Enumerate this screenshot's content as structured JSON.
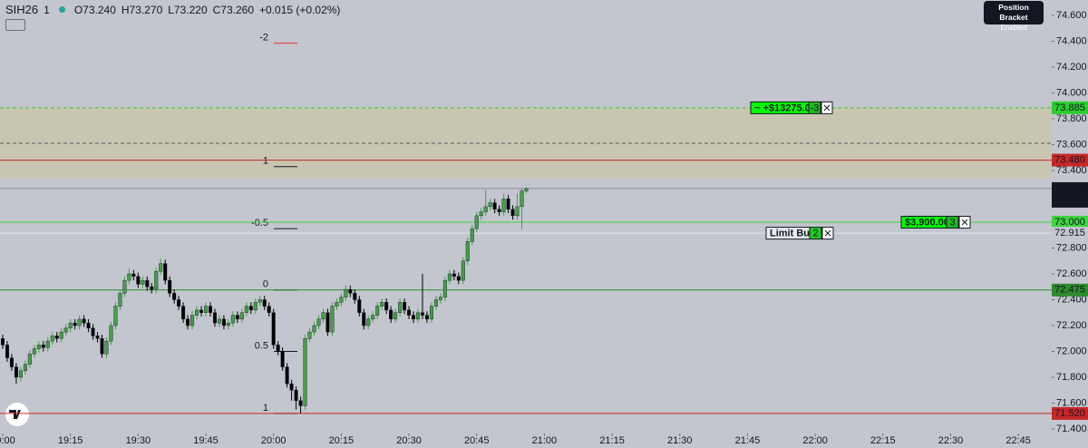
{
  "header": {
    "symbol": "SIH26",
    "interval": "1",
    "open": "O73.240",
    "high": "H73.270",
    "low": "L73.220",
    "close": "C73.260",
    "change": "+0.015 (+0.02%)"
  },
  "tooltip": {
    "title": "Position Bracket",
    "status": "Enabled"
  },
  "chart_data": {
    "type": "candlestick",
    "open": [
      72.1,
      72.05,
      71.95,
      71.88,
      71.8,
      71.85,
      71.9,
      71.98,
      72.02,
      72.05,
      72.03,
      72.08,
      72.12,
      72.1,
      72.15,
      72.18,
      72.22,
      72.2,
      72.25,
      72.22,
      72.18,
      72.12,
      72.1,
      71.98,
      72.08,
      72.2,
      72.35,
      72.45,
      72.55,
      72.6,
      72.58,
      72.52,
      72.55,
      72.5,
      72.48,
      72.62,
      72.68,
      72.55,
      72.45,
      72.4,
      72.35,
      72.25,
      72.2,
      72.28,
      72.32,
      72.3,
      72.35,
      72.3,
      72.22,
      72.25,
      72.2,
      72.22,
      72.28,
      72.25,
      72.3,
      72.35,
      72.32,
      72.38,
      72.4,
      72.35,
      72.3,
      72.05,
      72.0,
      71.88,
      71.75,
      71.7,
      71.62,
      71.58,
      72.1,
      72.15,
      72.2,
      72.25,
      72.3,
      72.15,
      72.35,
      72.38,
      72.42,
      72.48,
      72.45,
      72.4,
      72.3,
      72.2,
      72.25,
      72.28,
      72.35,
      72.38,
      72.32,
      72.25,
      72.3,
      72.38,
      72.32,
      72.28,
      72.25,
      72.3,
      72.28,
      72.25,
      72.35,
      72.4,
      72.42,
      72.55,
      72.6,
      72.58,
      72.55,
      72.7,
      72.85,
      72.95,
      73.05,
      73.08,
      73.12,
      73.15,
      73.1,
      73.08,
      73.18,
      73.1,
      73.05,
      73.12,
      73.24
    ],
    "high": [
      72.13,
      72.08,
      71.98,
      71.91,
      71.88,
      71.93,
      72.01,
      72.05,
      72.08,
      72.08,
      72.11,
      72.15,
      72.15,
      72.18,
      72.21,
      72.25,
      72.25,
      72.28,
      72.28,
      72.25,
      72.21,
      72.15,
      72.13,
      72.11,
      72.23,
      72.38,
      72.48,
      72.58,
      72.64,
      72.63,
      72.61,
      72.58,
      72.58,
      72.53,
      72.65,
      72.72,
      72.71,
      72.58,
      72.48,
      72.43,
      72.38,
      72.28,
      72.31,
      72.35,
      72.35,
      72.38,
      72.38,
      72.33,
      72.28,
      72.28,
      72.25,
      72.31,
      72.31,
      72.33,
      72.38,
      72.38,
      72.41,
      72.43,
      72.43,
      72.38,
      72.33,
      72.08,
      72.03,
      71.91,
      71.78,
      71.73,
      71.65,
      72.13,
      72.18,
      72.23,
      72.28,
      72.33,
      72.33,
      72.38,
      72.41,
      72.45,
      72.51,
      72.51,
      72.48,
      72.43,
      72.33,
      72.28,
      72.31,
      72.38,
      72.41,
      72.41,
      72.35,
      72.33,
      72.41,
      72.41,
      72.35,
      72.31,
      72.33,
      72.6,
      72.31,
      72.38,
      72.43,
      72.45,
      72.58,
      72.63,
      72.63,
      72.61,
      72.73,
      72.88,
      72.98,
      73.08,
      73.11,
      73.25,
      73.18,
      73.18,
      73.13,
      73.22,
      73.21,
      73.13,
      73.22,
      73.26,
      73.27
    ],
    "low": [
      72.02,
      71.92,
      71.85,
      71.75,
      71.77,
      71.82,
      71.87,
      71.95,
      71.99,
      72.0,
      72.0,
      72.05,
      72.07,
      72.07,
      72.12,
      72.15,
      72.17,
      72.17,
      72.19,
      72.15,
      72.09,
      72.07,
      71.95,
      71.95,
      72.05,
      72.17,
      72.32,
      72.42,
      72.52,
      72.55,
      72.49,
      72.49,
      72.47,
      72.45,
      72.45,
      72.59,
      72.52,
      72.42,
      72.37,
      72.32,
      72.22,
      72.17,
      72.17,
      72.25,
      72.27,
      72.27,
      72.27,
      72.19,
      72.19,
      72.17,
      72.17,
      72.19,
      72.22,
      72.22,
      72.27,
      72.29,
      72.29,
      72.35,
      72.32,
      72.27,
      72.02,
      71.97,
      71.85,
      71.72,
      71.62,
      71.55,
      71.52,
      71.55,
      72.07,
      72.12,
      72.17,
      72.22,
      72.12,
      72.12,
      72.32,
      72.35,
      72.39,
      72.42,
      72.37,
      72.27,
      72.17,
      72.17,
      72.22,
      72.25,
      72.32,
      72.29,
      72.22,
      72.22,
      72.27,
      72.29,
      72.25,
      72.22,
      72.22,
      72.25,
      72.22,
      72.22,
      72.32,
      72.37,
      72.39,
      72.52,
      72.55,
      72.52,
      72.52,
      72.67,
      72.82,
      72.92,
      73.02,
      73.05,
      73.09,
      73.07,
      73.05,
      73.05,
      73.07,
      73.02,
      73.02,
      72.95,
      73.22
    ],
    "close": [
      72.05,
      71.95,
      71.88,
      71.8,
      71.85,
      71.9,
      71.98,
      72.02,
      72.05,
      72.03,
      72.08,
      72.12,
      72.1,
      72.15,
      72.18,
      72.22,
      72.2,
      72.25,
      72.22,
      72.18,
      72.12,
      72.1,
      71.98,
      72.08,
      72.2,
      72.35,
      72.45,
      72.55,
      72.6,
      72.58,
      72.52,
      72.55,
      72.5,
      72.48,
      72.62,
      72.68,
      72.55,
      72.45,
      72.4,
      72.35,
      72.25,
      72.2,
      72.28,
      72.32,
      72.3,
      72.35,
      72.3,
      72.22,
      72.25,
      72.2,
      72.22,
      72.28,
      72.25,
      72.3,
      72.35,
      72.32,
      72.38,
      72.4,
      72.35,
      72.3,
      72.05,
      72.0,
      71.88,
      71.75,
      71.7,
      71.62,
      71.58,
      72.1,
      72.15,
      72.2,
      72.25,
      72.3,
      72.15,
      72.35,
      72.38,
      72.42,
      72.48,
      72.45,
      72.4,
      72.3,
      72.2,
      72.25,
      72.28,
      72.35,
      72.38,
      72.32,
      72.25,
      72.3,
      72.38,
      72.32,
      72.28,
      72.25,
      72.3,
      72.28,
      72.25,
      72.35,
      72.4,
      72.42,
      72.55,
      72.6,
      72.58,
      72.55,
      72.7,
      72.85,
      72.95,
      73.05,
      73.08,
      73.12,
      73.15,
      73.1,
      73.08,
      73.18,
      73.1,
      73.05,
      73.12,
      73.24,
      73.26
    ],
    "up_color": "#43a047",
    "down_color": "#000000",
    "xlim": [
      -0.6,
      232.4
    ],
    "xticks": [
      {
        "value": 0,
        "label": "19:00"
      },
      {
        "value": 15,
        "label": "19:15"
      },
      {
        "value": 30,
        "label": "19:30"
      },
      {
        "value": 45,
        "label": "19:45"
      },
      {
        "value": 60,
        "label": "20:00"
      },
      {
        "value": 75,
        "label": "20:15"
      },
      {
        "value": 90,
        "label": "20:30"
      },
      {
        "value": 105,
        "label": "20:45"
      },
      {
        "value": 120,
        "label": "21:00"
      },
      {
        "value": 135,
        "label": "21:15"
      },
      {
        "value": 150,
        "label": "21:30"
      },
      {
        "value": 165,
        "label": "21:45"
      },
      {
        "value": 180,
        "label": "22:00"
      },
      {
        "value": 195,
        "label": "22:15"
      },
      {
        "value": 210,
        "label": "22:30"
      },
      {
        "value": 225,
        "label": "22:45"
      }
    ],
    "ylim": [
      71.365,
      74.719
    ],
    "yticks": [
      {
        "value": 74.6,
        "label": "74.600"
      },
      {
        "value": 74.4,
        "label": "74.400"
      },
      {
        "value": 74.2,
        "label": "74.200"
      },
      {
        "value": 74.0,
        "label": "74.000"
      },
      {
        "value": 73.8,
        "label": "73.800"
      },
      {
        "value": 73.6,
        "label": "73.600"
      },
      {
        "value": 73.4,
        "label": "73.400"
      },
      {
        "value": 72.8,
        "label": "72.800"
      },
      {
        "value": 72.6,
        "label": "72.600"
      },
      {
        "value": 72.4,
        "label": "72.400"
      },
      {
        "value": 72.2,
        "label": "72.200"
      },
      {
        "value": 72.0,
        "label": "72.000"
      },
      {
        "value": 71.8,
        "label": "71.800"
      },
      {
        "value": 71.6,
        "label": "71.600"
      },
      {
        "value": 71.4,
        "label": "71.400"
      }
    ],
    "zone": {
      "top": 73.885,
      "bottom": 73.34,
      "mid": 73.61,
      "color": "#c9c6ab"
    },
    "price_lines": [
      {
        "value": 73.885,
        "label": "73.885",
        "color": "#2ecc2e",
        "style": "dashed",
        "order": {
          "text": "~ +$13275.00",
          "qty": "-3"
        }
      },
      {
        "value": 73.48,
        "label": "73.480",
        "color": "#c62828",
        "style": "solid"
      },
      {
        "value": 73.26,
        "label": "73.260",
        "color": "#8a8d95",
        "style": "solid",
        "countdown": "00:52"
      },
      {
        "value": 73.0,
        "label": "73.000",
        "color": "#3fd43f",
        "style": "solid",
        "order": {
          "text": "$3,900.00",
          "qty": "3"
        }
      },
      {
        "value": 72.915,
        "label": "72.915",
        "color": "#e4e6ea",
        "style": "solid",
        "order": {
          "text": "Limit Buy",
          "qty": "2"
        }
      },
      {
        "value": 72.475,
        "label": "72.475",
        "color": "#2e8b2e",
        "style": "solid"
      },
      {
        "value": 71.52,
        "label": "71.520",
        "color": "#c62828",
        "style": "solid"
      }
    ],
    "fib_levels": [
      {
        "value": 74.385,
        "label": "-2",
        "color": "#e53935"
      },
      {
        "value": 73.43,
        "label": "1",
        "color": "#131722"
      },
      {
        "value": 72.95,
        "label": "-0.5",
        "color": "#131722"
      },
      {
        "value": 72.475,
        "label": "0",
        "color": "#131722"
      },
      {
        "value": 72.0,
        "label": "0.5",
        "color": "#131722"
      },
      {
        "value": 71.52,
        "label": "1",
        "color": "#131722"
      }
    ]
  }
}
